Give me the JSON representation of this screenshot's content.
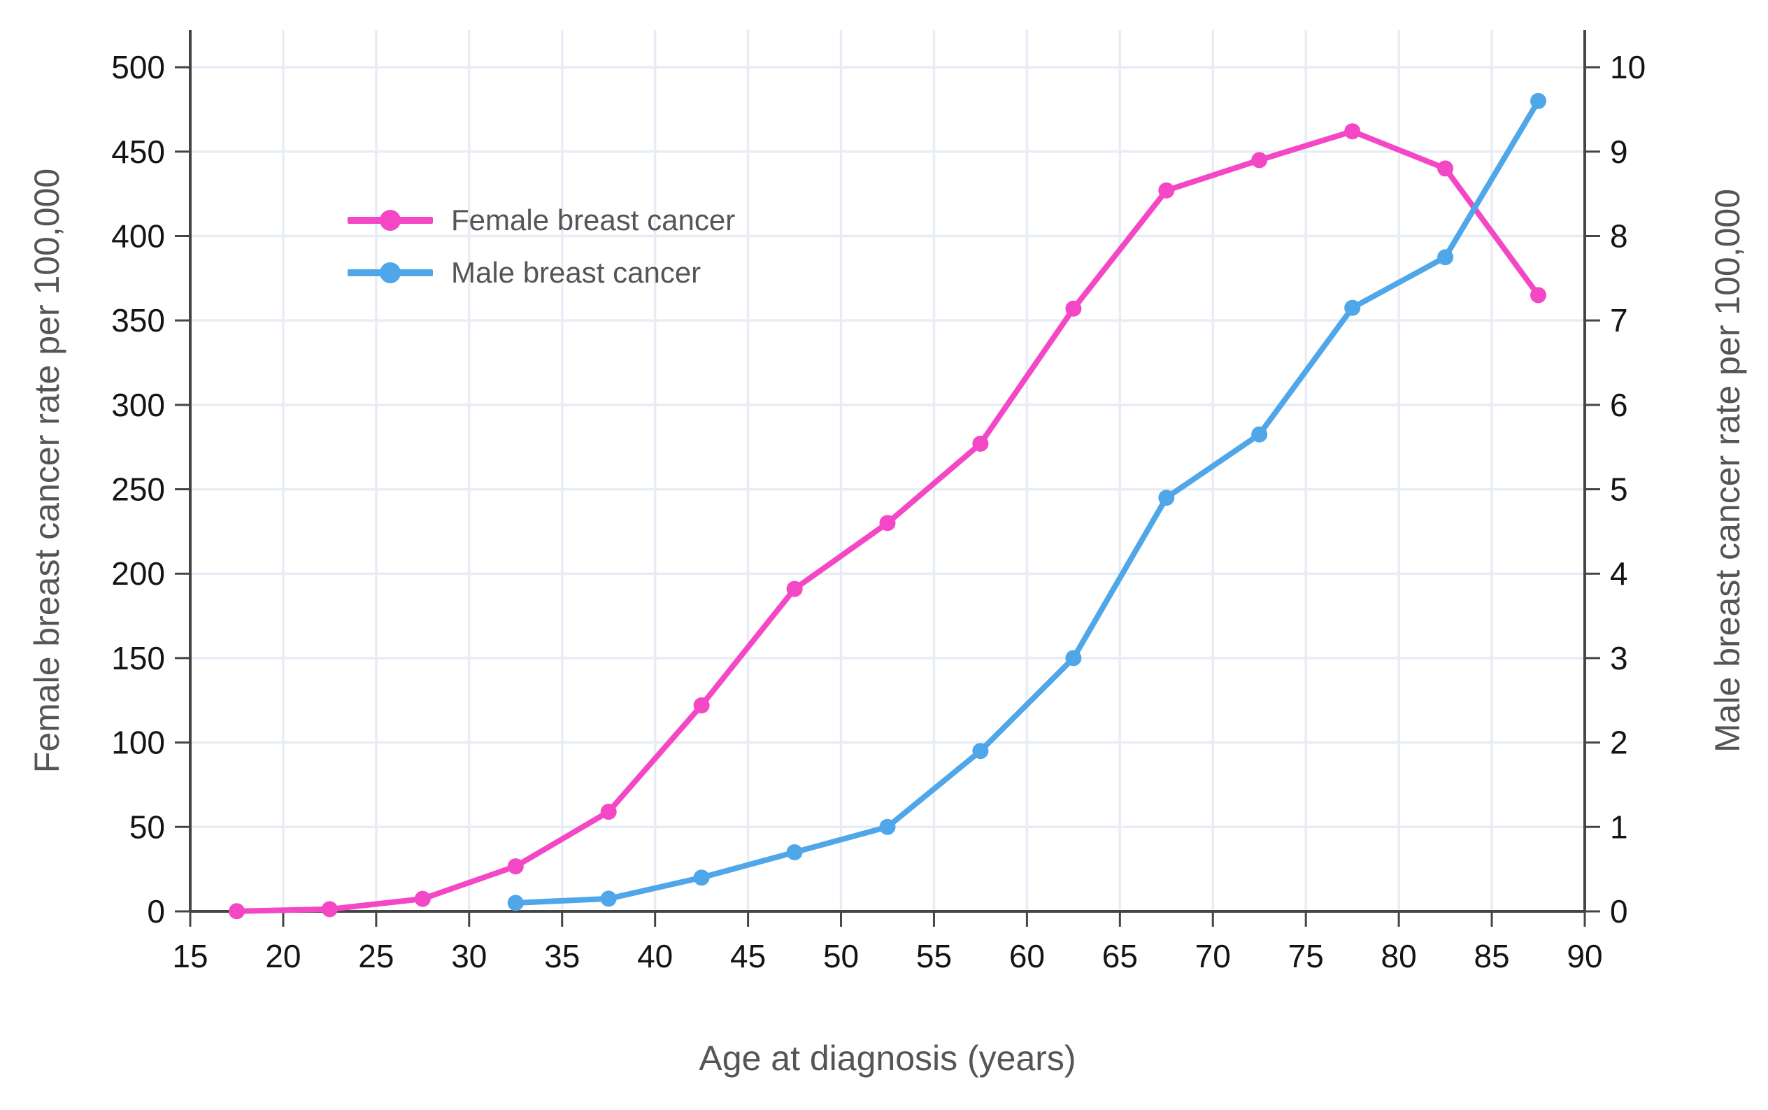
{
  "chart_data": {
    "type": "line",
    "title": "",
    "grid": true,
    "legend_position": "inside-top-left",
    "background_color": "#ffffff",
    "grid_color": "#E8ECF5",
    "spine_color": "#454545",
    "tick_label_color": "#141414",
    "axis_title_color": "#555555",
    "x": {
      "title": "Age at diagnosis (years)",
      "range": [
        15,
        90
      ],
      "ticks": [
        15,
        20,
        25,
        30,
        35,
        40,
        45,
        50,
        55,
        60,
        65,
        70,
        75,
        80,
        85,
        90
      ]
    },
    "y_left": {
      "title": "Female breast cancer rate per 100,000",
      "range": [
        0,
        522
      ],
      "ticks": [
        0,
        50,
        100,
        150,
        200,
        250,
        300,
        350,
        400,
        450,
        500
      ]
    },
    "y_right": {
      "title": "Male breast cancer rate per 100,000",
      "range": [
        0,
        10.44
      ],
      "ticks": [
        0,
        1,
        2,
        3,
        4,
        5,
        6,
        7,
        8,
        9,
        10
      ]
    },
    "series": [
      {
        "name": "Female breast cancer",
        "axis": "left",
        "color": "#F447C5",
        "x": [
          17.5,
          22.5,
          27.5,
          32.5,
          37.5,
          42.5,
          47.5,
          52.5,
          57.5,
          62.5,
          67.5,
          72.5,
          77.5,
          82.5,
          87.5
        ],
        "values": [
          0.1,
          1.3,
          7.4,
          26.7,
          59,
          122,
          191,
          230,
          277,
          357,
          427,
          445,
          462,
          440,
          365
        ]
      },
      {
        "name": "Male breast cancer",
        "axis": "right",
        "color": "#4FA6E8",
        "x": [
          32.5,
          37.5,
          42.5,
          47.5,
          52.5,
          57.5,
          62.5,
          67.5,
          72.5,
          77.5,
          82.5,
          87.5
        ],
        "values": [
          0.1,
          0.15,
          0.4,
          0.7,
          1.0,
          1.9,
          3.0,
          4.9,
          5.65,
          7.15,
          7.75,
          9.6
        ]
      }
    ]
  }
}
